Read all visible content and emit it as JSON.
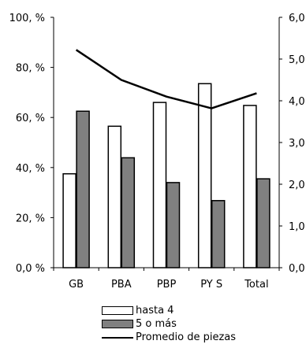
{
  "chart_data": {
    "type": "bar",
    "categories": [
      "GB",
      "PBA",
      "PBP",
      "PY S",
      "Total"
    ],
    "series": [
      {
        "name": "hasta 4",
        "kind": "bar",
        "axis": "left",
        "values": [
          37.5,
          56.5,
          66,
          73.5,
          64.8
        ],
        "color": "#ffffff"
      },
      {
        "name": "5 o más",
        "kind": "bar",
        "axis": "left",
        "values": [
          62.5,
          43.9,
          34,
          26.8,
          35.5
        ],
        "color": "#808080"
      },
      {
        "name": "Promedio de piezas",
        "kind": "line",
        "axis": "right",
        "values": [
          5.22,
          4.5,
          4.1,
          3.82,
          4.18
        ],
        "color": "#000000"
      }
    ],
    "ylim": [
      0,
      100
    ],
    "y2lim": [
      0,
      6
    ],
    "yticks": [
      "0,0 %",
      "20, %",
      "40, %",
      "60, %",
      "80, %",
      "100, %"
    ],
    "y2ticks": [
      "0,0",
      "1,0",
      "2,0",
      "3,0",
      "4,0",
      "5,0",
      "6,0"
    ],
    "xlabel": "",
    "ylabel": "",
    "grid": false,
    "legend_position": "bottom"
  }
}
